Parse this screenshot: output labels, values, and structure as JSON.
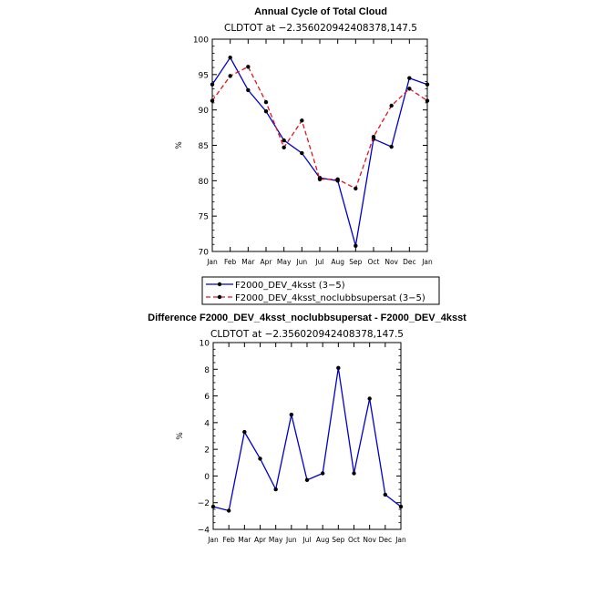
{
  "chart_data": [
    {
      "type": "line",
      "title": "Annual Cycle of Total Cloud",
      "subtitle": "CLDTOT at −2.356020942408378,147.5",
      "ylabel": "%",
      "xlabel": "",
      "ylim": [
        70,
        100
      ],
      "yticks": [
        "70",
        "75",
        "80",
        "85",
        "90",
        "95",
        "100"
      ],
      "categories": [
        "Jan",
        "Feb",
        "Mar",
        "Apr",
        "May",
        "Jun",
        "Jul",
        "Aug",
        "Sep",
        "Oct",
        "Nov",
        "Dec",
        "Jan"
      ],
      "series": [
        {
          "name": "F2000_DEV_4ksst (3−5)",
          "color": "#0000cc",
          "dash": "solid",
          "values": [
            93.6,
            97.4,
            92.8,
            89.8,
            85.7,
            83.9,
            80.4,
            80.0,
            70.8,
            85.9,
            84.8,
            94.5,
            93.6
          ]
        },
        {
          "name": "F2000_DEV_4ksst_noclubbsupersat (3−5)",
          "color": "#e0141e",
          "dash": "dashed",
          "values": [
            91.3,
            94.8,
            96.1,
            91.1,
            84.7,
            88.5,
            80.2,
            80.2,
            78.9,
            86.2,
            90.6,
            93.0,
            91.3
          ]
        }
      ],
      "grid": false,
      "legend_position": "below"
    },
    {
      "type": "line",
      "title": "Difference F2000_DEV_4ksst_noclubbsupersat - F2000_DEV_4ksst",
      "subtitle": "CLDTOT at −2.356020942408378,147.5",
      "ylabel": "%",
      "xlabel": "",
      "ylim": [
        -4,
        10
      ],
      "yticks": [
        "−4",
        "−2",
        "0",
        "2",
        "4",
        "6",
        "8",
        "10"
      ],
      "categories": [
        "Jan",
        "Feb",
        "Mar",
        "Apr",
        "May",
        "Jun",
        "Jul",
        "Aug",
        "Sep",
        "Oct",
        "Nov",
        "Dec",
        "Jan"
      ],
      "series": [
        {
          "color": "#0000cc",
          "dash": "solid",
          "values": [
            -2.3,
            -2.6,
            3.3,
            1.3,
            -1.0,
            4.6,
            -0.3,
            0.2,
            8.1,
            0.2,
            5.8,
            -1.4,
            -2.3
          ]
        }
      ],
      "grid": false
    }
  ]
}
